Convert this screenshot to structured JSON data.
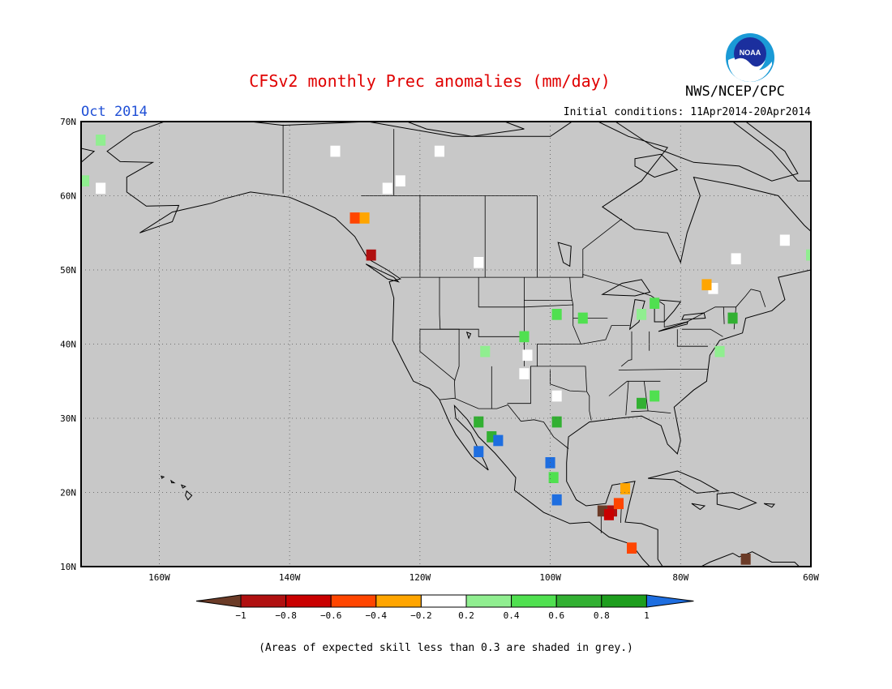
{
  "title": "CFSv2 monthly Prec anomalies (mm/day)",
  "valid_month": "Oct 2014",
  "initial_conditions": "Initial conditions: 11Apr2014-20Apr2014",
  "agency": "NWS/NCEP/CPC",
  "logo_text": "NOAA",
  "footnote": "(Areas of expected skill less than 0.3 are shaded in grey.)",
  "map": {
    "projection": "latitude-longitude",
    "lon_range": [
      -172,
      -60
    ],
    "lat_range": [
      10,
      70
    ],
    "lat_labels": [
      "70N",
      "60N",
      "50N",
      "40N",
      "30N",
      "20N",
      "10N"
    ],
    "lat_values": [
      70,
      60,
      50,
      40,
      30,
      20,
      10
    ],
    "lon_labels": [
      "160W",
      "140W",
      "120W",
      "100W",
      "80W",
      "60W"
    ],
    "lon_values": [
      -160,
      -140,
      -120,
      -100,
      -80,
      -60
    ],
    "grid": true,
    "background_color": "#c8c8c8"
  },
  "colorbar": {
    "tick_labels": [
      "−1",
      "−0.8",
      "−0.6",
      "−0.4",
      "−0.2",
      "0.2",
      "0.4",
      "0.6",
      "0.8",
      "1"
    ],
    "colors": [
      "#6b3b27",
      "#b01010",
      "#c90000",
      "#ff4500",
      "#ffa500",
      "#ffffff",
      "#90ee90",
      "#50e050",
      "#32b032",
      "#1e9e1e",
      "#1e6ee0"
    ]
  },
  "anomaly_cells": [
    {
      "lon": -169,
      "lat": 67.5,
      "value": 0.3
    },
    {
      "lon": -171.5,
      "lat": 62,
      "value": 0.3
    },
    {
      "lon": -169,
      "lat": 61,
      "value": 0.0
    },
    {
      "lon": -130,
      "lat": 57,
      "value": -0.5
    },
    {
      "lon": -128.5,
      "lat": 57,
      "value": -0.4
    },
    {
      "lon": -127.5,
      "lat": 52,
      "value": -0.9
    },
    {
      "lon": -133,
      "lat": 66,
      "value": 0.0
    },
    {
      "lon": -125,
      "lat": 61,
      "value": 0.0
    },
    {
      "lon": -123,
      "lat": 62,
      "value": 0.0
    },
    {
      "lon": -117,
      "lat": 66,
      "value": 0.0
    },
    {
      "lon": -111,
      "lat": 51,
      "value": 0.0
    },
    {
      "lon": -75,
      "lat": 47.5,
      "value": 0.0
    },
    {
      "lon": -71.5,
      "lat": 51.5,
      "value": 0.0
    },
    {
      "lon": -64,
      "lat": 54,
      "value": 0.0
    },
    {
      "lon": -60,
      "lat": 52,
      "value": 0.3
    },
    {
      "lon": -76,
      "lat": 48,
      "value": -0.4
    },
    {
      "lon": -104,
      "lat": 41,
      "value": 0.5
    },
    {
      "lon": -110,
      "lat": 39,
      "value": 0.3
    },
    {
      "lon": -103.5,
      "lat": 38.5,
      "value": 0.0
    },
    {
      "lon": -99,
      "lat": 44,
      "value": 0.5
    },
    {
      "lon": -95,
      "lat": 43.5,
      "value": 0.4
    },
    {
      "lon": -86,
      "lat": 44,
      "value": 0.3
    },
    {
      "lon": -84,
      "lat": 45.5,
      "value": 0.4
    },
    {
      "lon": -72,
      "lat": 43.5,
      "value": 0.7
    },
    {
      "lon": -74,
      "lat": 39,
      "value": 0.3
    },
    {
      "lon": -86,
      "lat": 32,
      "value": 0.7
    },
    {
      "lon": -84,
      "lat": 33,
      "value": 0.5
    },
    {
      "lon": -111,
      "lat": 29.5,
      "value": 0.7
    },
    {
      "lon": -109,
      "lat": 27.5,
      "value": 0.7
    },
    {
      "lon": -111,
      "lat": 25.5,
      "value": 1.1
    },
    {
      "lon": -108,
      "lat": 27,
      "value": 1.1
    },
    {
      "lon": -99,
      "lat": 29.5,
      "value": 0.7
    },
    {
      "lon": -100,
      "lat": 24,
      "value": 1.1
    },
    {
      "lon": -99.5,
      "lat": 22,
      "value": 0.5
    },
    {
      "lon": -99,
      "lat": 19,
      "value": 1.1
    },
    {
      "lon": -92,
      "lat": 17.5,
      "value": -1.1
    },
    {
      "lon": -90.5,
      "lat": 17.5,
      "value": -0.9
    },
    {
      "lon": -89.5,
      "lat": 18.5,
      "value": -0.5
    },
    {
      "lon": -88.5,
      "lat": 20.5,
      "value": -0.4
    },
    {
      "lon": -91,
      "lat": 17,
      "value": -0.7
    },
    {
      "lon": -87.5,
      "lat": 12.5,
      "value": -0.6
    },
    {
      "lon": -70,
      "lat": 11,
      "value": -1.1
    },
    {
      "lon": -99,
      "lat": 33,
      "value": 0.0
    },
    {
      "lon": -104,
      "lat": 36,
      "value": 0.0
    }
  ]
}
